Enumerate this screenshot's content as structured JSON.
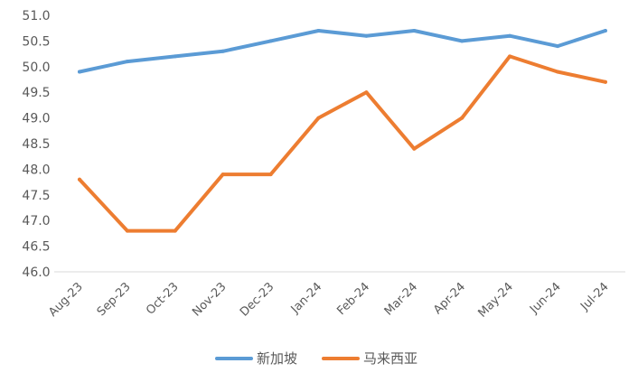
{
  "chart_data": {
    "type": "line",
    "categories": [
      "Aug-23",
      "Sep-23",
      "Oct-23",
      "Nov-23",
      "Dec-23",
      "Jan-24",
      "Feb-24",
      "Mar-24",
      "Apr-24",
      "May-24",
      "Jun-24",
      "Jul-24"
    ],
    "series": [
      {
        "name": "新加坡",
        "color": "#5B9BD5",
        "values": [
          49.9,
          50.1,
          50.2,
          50.3,
          50.5,
          50.7,
          50.6,
          50.7,
          50.5,
          50.6,
          50.4,
          50.7
        ]
      },
      {
        "name": "马来西亚",
        "color": "#ED7D31",
        "values": [
          47.8,
          46.8,
          46.8,
          47.9,
          47.9,
          49.0,
          49.5,
          48.4,
          49.0,
          50.2,
          49.9,
          49.7
        ]
      }
    ],
    "yticks": [
      "46.0",
      "46.5",
      "47.0",
      "47.5",
      "48.0",
      "48.5",
      "49.0",
      "49.5",
      "50.0",
      "50.5",
      "51.0"
    ],
    "ylim": [
      46.0,
      51.0
    ],
    "grid": false,
    "legend_position": "bottom",
    "title": "",
    "xlabel": "",
    "ylabel": ""
  }
}
